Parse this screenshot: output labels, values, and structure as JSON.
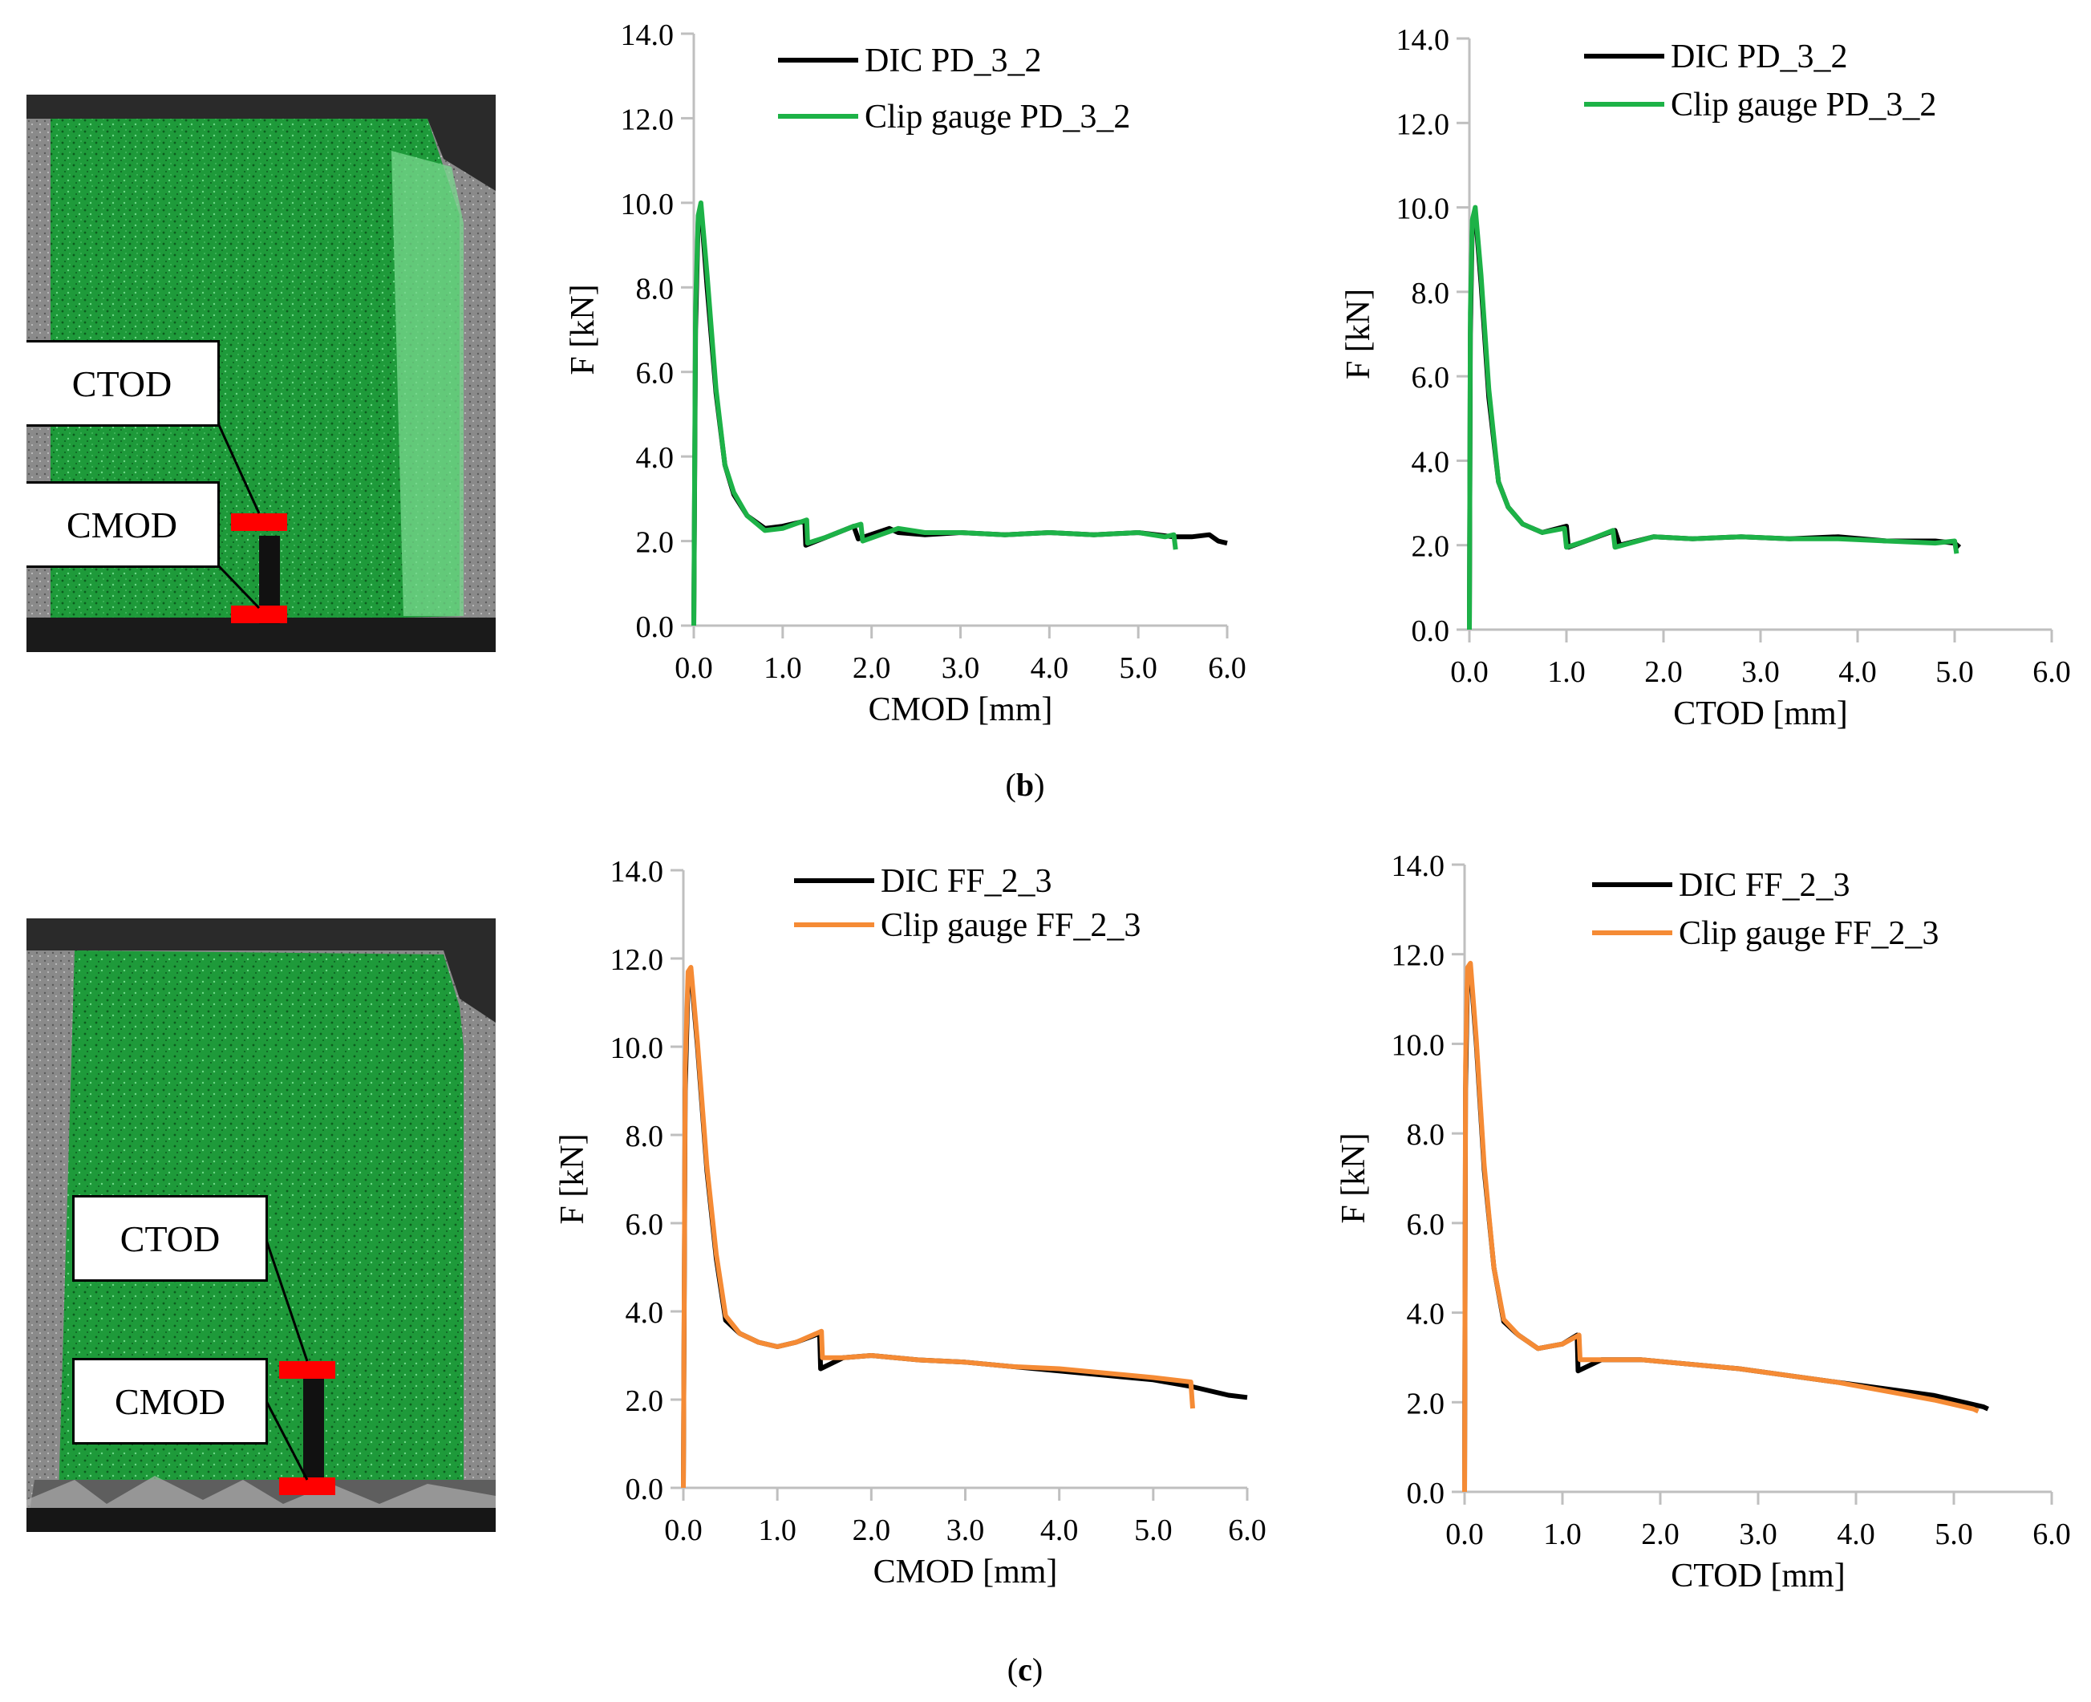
{
  "colors": {
    "dic": "#000000",
    "green": "#1db247",
    "orange": "#f58b35",
    "marker": "#ff0000",
    "axis": "#bfbfbf"
  },
  "photos": [
    {
      "ctod_label": "CTOD",
      "cmod_label": "CMOD"
    },
    {
      "ctod_label": "CTOD",
      "cmod_label": "CMOD"
    }
  ],
  "captions": [
    {
      "open": "(",
      "letter": "b",
      "close": ")"
    },
    {
      "open": "(",
      "letter": "c",
      "close": ")"
    }
  ],
  "chart_data": [
    {
      "type": "line",
      "panel": "b-left",
      "xlabel": "CMOD [mm]",
      "ylabel": "F [kN]",
      "xlim": [
        0,
        6
      ],
      "ylim": [
        0,
        14
      ],
      "xticks": [
        "0.0",
        "1.0",
        "2.0",
        "3.0",
        "4.0",
        "5.0",
        "6.0"
      ],
      "yticks": [
        "0.0",
        "2.0",
        "4.0",
        "6.0",
        "8.0",
        "10.0",
        "12.0",
        "14.0"
      ],
      "legend": "top-right",
      "series": [
        {
          "name": "DIC PD_3_2",
          "color": "#000000",
          "x": [
            0,
            0.02,
            0.05,
            0.08,
            0.15,
            0.25,
            0.35,
            0.45,
            0.6,
            0.8,
            1.0,
            1.2,
            1.25,
            1.26,
            1.5,
            1.8,
            1.85,
            2.2,
            2.3,
            2.6,
            3.0,
            3.5,
            4.0,
            4.5,
            5.0,
            5.4,
            5.6,
            5.8,
            5.9,
            6.0
          ],
          "y": [
            0,
            7.0,
            9.6,
            9.9,
            8.0,
            5.5,
            3.8,
            3.1,
            2.6,
            2.3,
            2.35,
            2.45,
            2.45,
            1.9,
            2.1,
            2.35,
            2.05,
            2.3,
            2.2,
            2.15,
            2.2,
            2.15,
            2.2,
            2.15,
            2.2,
            2.1,
            2.1,
            2.15,
            2.0,
            1.95
          ]
        },
        {
          "name": "Clip gauge PD_3_2",
          "color": "#1db247",
          "x": [
            0,
            0.02,
            0.05,
            0.08,
            0.15,
            0.25,
            0.35,
            0.45,
            0.6,
            0.8,
            1.0,
            1.2,
            1.27,
            1.28,
            1.5,
            1.8,
            1.88,
            1.9,
            2.3,
            2.6,
            3.0,
            3.5,
            4.0,
            4.5,
            5.0,
            5.3,
            5.4,
            5.42
          ],
          "y": [
            0,
            7.5,
            9.7,
            10.0,
            8.3,
            5.6,
            3.8,
            3.15,
            2.6,
            2.25,
            2.3,
            2.45,
            2.5,
            1.95,
            2.1,
            2.35,
            2.4,
            2.0,
            2.3,
            2.2,
            2.2,
            2.15,
            2.2,
            2.15,
            2.2,
            2.1,
            2.15,
            1.8
          ]
        }
      ]
    },
    {
      "type": "line",
      "panel": "b-right",
      "xlabel": "CTOD [mm]",
      "ylabel": "F [kN]",
      "xlim": [
        0,
        6
      ],
      "ylim": [
        0,
        14
      ],
      "xticks": [
        "0.0",
        "1.0",
        "2.0",
        "3.0",
        "4.0",
        "5.0",
        "6.0"
      ],
      "yticks": [
        "0.0",
        "2.0",
        "4.0",
        "6.0",
        "8.0",
        "10.0",
        "12.0",
        "14.0"
      ],
      "legend": "top-right",
      "series": [
        {
          "name": "DIC PD_3_2",
          "color": "#000000",
          "x": [
            0,
            0.01,
            0.03,
            0.06,
            0.12,
            0.2,
            0.3,
            0.4,
            0.55,
            0.75,
            1.0,
            1.02,
            1.2,
            1.5,
            1.55,
            1.9,
            2.3,
            2.8,
            3.3,
            3.8,
            4.3,
            4.8,
            5.0,
            5.05
          ],
          "y": [
            0,
            7.0,
            9.6,
            9.9,
            8.2,
            5.5,
            3.5,
            2.9,
            2.5,
            2.3,
            2.45,
            1.95,
            2.1,
            2.35,
            2.0,
            2.2,
            2.15,
            2.2,
            2.15,
            2.2,
            2.1,
            2.1,
            2.05,
            1.95
          ]
        },
        {
          "name": "Clip gauge PD_3_2",
          "color": "#1db247",
          "x": [
            0,
            0.01,
            0.03,
            0.06,
            0.12,
            0.2,
            0.3,
            0.4,
            0.55,
            0.75,
            0.98,
            1.0,
            1.2,
            1.48,
            1.5,
            1.9,
            2.3,
            2.8,
            3.3,
            3.8,
            4.3,
            4.8,
            5.0,
            5.02
          ],
          "y": [
            0,
            7.5,
            9.7,
            10.0,
            8.4,
            5.7,
            3.5,
            2.9,
            2.5,
            2.3,
            2.4,
            1.95,
            2.1,
            2.35,
            1.95,
            2.2,
            2.15,
            2.2,
            2.15,
            2.15,
            2.1,
            2.05,
            2.1,
            1.8
          ]
        }
      ]
    },
    {
      "type": "line",
      "panel": "c-left",
      "xlabel": "CMOD [mm]",
      "ylabel": "F [kN]",
      "xlim": [
        0,
        6
      ],
      "ylim": [
        0,
        14
      ],
      "xticks": [
        "0.0",
        "1.0",
        "2.0",
        "3.0",
        "4.0",
        "5.0",
        "6.0"
      ],
      "yticks": [
        "0.0",
        "2.0",
        "4.0",
        "6.0",
        "8.0",
        "10.0",
        "12.0",
        "14.0"
      ],
      "legend": "top-right",
      "series": [
        {
          "name": "DIC FF_2_3",
          "color": "#000000",
          "x": [
            0,
            0.02,
            0.05,
            0.08,
            0.15,
            0.25,
            0.35,
            0.45,
            0.6,
            0.8,
            1.0,
            1.2,
            1.45,
            1.46,
            1.7,
            2.0,
            2.5,
            3.0,
            3.5,
            4.0,
            4.5,
            5.0,
            5.4,
            5.6,
            5.8,
            6.0
          ],
          "y": [
            0,
            9.0,
            11.5,
            11.7,
            10.0,
            7.2,
            5.2,
            3.8,
            3.5,
            3.3,
            3.2,
            3.3,
            3.5,
            2.7,
            2.95,
            3.0,
            2.9,
            2.85,
            2.75,
            2.65,
            2.55,
            2.45,
            2.3,
            2.2,
            2.1,
            2.05
          ]
        },
        {
          "name": "Clip gauge FF_2_3",
          "color": "#f58b35",
          "x": [
            0,
            0.02,
            0.05,
            0.08,
            0.15,
            0.25,
            0.35,
            0.45,
            0.6,
            0.8,
            1.0,
            1.2,
            1.47,
            1.48,
            1.7,
            2.0,
            2.5,
            3.0,
            3.5,
            4.0,
            4.5,
            5.0,
            5.4,
            5.42
          ],
          "y": [
            0,
            9.5,
            11.7,
            11.8,
            10.1,
            7.3,
            5.3,
            3.9,
            3.5,
            3.3,
            3.2,
            3.3,
            3.55,
            2.95,
            2.95,
            3.0,
            2.9,
            2.85,
            2.75,
            2.7,
            2.6,
            2.5,
            2.4,
            1.8
          ]
        }
      ]
    },
    {
      "type": "line",
      "panel": "c-right",
      "xlabel": "CTOD [mm]",
      "ylabel": "F [kN]",
      "xlim": [
        0,
        6
      ],
      "ylim": [
        0,
        14
      ],
      "xticks": [
        "0.0",
        "1.0",
        "2.0",
        "3.0",
        "4.0",
        "5.0",
        "6.0"
      ],
      "yticks": [
        "0.0",
        "2.0",
        "4.0",
        "6.0",
        "8.0",
        "10.0",
        "12.0",
        "14.0"
      ],
      "legend": "top-right",
      "series": [
        {
          "name": "DIC FF_2_3",
          "color": "#000000",
          "x": [
            0,
            0.01,
            0.03,
            0.06,
            0.12,
            0.2,
            0.3,
            0.4,
            0.55,
            0.75,
            1.0,
            1.15,
            1.16,
            1.4,
            1.8,
            2.3,
            2.8,
            3.3,
            3.8,
            4.3,
            4.8,
            5.1,
            5.3,
            5.35
          ],
          "y": [
            0,
            9.0,
            11.5,
            11.7,
            10.0,
            7.2,
            5.0,
            3.8,
            3.5,
            3.2,
            3.3,
            3.5,
            2.7,
            2.95,
            2.95,
            2.85,
            2.75,
            2.6,
            2.45,
            2.3,
            2.15,
            2.0,
            1.9,
            1.85
          ]
        },
        {
          "name": "Clip gauge FF_2_3",
          "color": "#f58b35",
          "x": [
            0,
            0.01,
            0.03,
            0.06,
            0.12,
            0.2,
            0.3,
            0.4,
            0.55,
            0.75,
            1.0,
            1.17,
            1.18,
            1.4,
            1.8,
            2.3,
            2.8,
            3.3,
            3.8,
            4.3,
            4.8,
            5.0,
            5.2,
            5.25
          ],
          "y": [
            0,
            9.5,
            11.7,
            11.8,
            10.1,
            7.3,
            5.0,
            3.85,
            3.5,
            3.2,
            3.3,
            3.5,
            2.95,
            2.95,
            2.95,
            2.85,
            2.75,
            2.6,
            2.45,
            2.25,
            2.05,
            1.95,
            1.85,
            1.8
          ]
        }
      ]
    }
  ]
}
